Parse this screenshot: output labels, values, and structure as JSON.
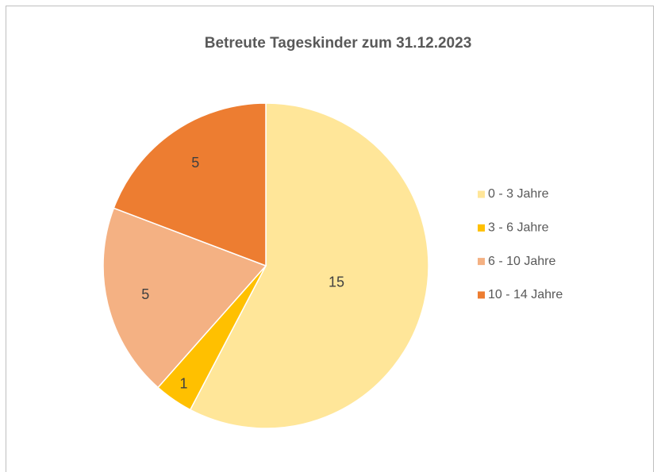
{
  "chart_data": {
    "type": "pie",
    "title": "Betreute Tageskinder zum 31.12.2023",
    "categories": [
      "0 - 3 Jahre",
      "3 - 6 Jahre",
      "6 - 10 Jahre",
      "10 - 14 Jahre"
    ],
    "values": [
      15,
      1,
      5,
      5
    ],
    "colors": [
      "#FFE699",
      "#FFC000",
      "#F4B183",
      "#ED7D31"
    ],
    "legend": "right"
  }
}
